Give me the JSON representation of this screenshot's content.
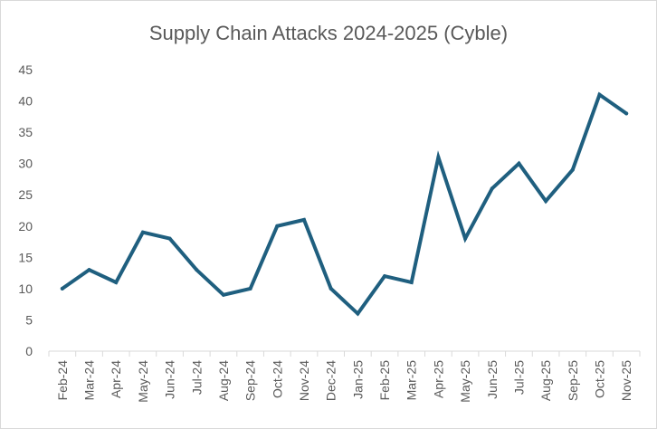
{
  "chart_data": {
    "type": "line",
    "title": "Supply Chain Attacks 2024-2025 (Cyble)",
    "xlabel": "",
    "ylabel": "",
    "categories": [
      "Feb-24",
      "Mar-24",
      "Apr-24",
      "May-24",
      "Jun-24",
      "Jul-24",
      "Aug-24",
      "Sep-24",
      "Oct-24",
      "Nov-24",
      "Dec-24",
      "Jan-25",
      "Feb-25",
      "Mar-25",
      "Apr-25",
      "May-25",
      "Jun-25",
      "Jul-25",
      "Aug-25",
      "Sep-25",
      "Oct-25",
      "Nov-25"
    ],
    "values": [
      10,
      13,
      11,
      19,
      18,
      13,
      9,
      10,
      20,
      21,
      10,
      6,
      12,
      11,
      31,
      18,
      26,
      30,
      24,
      29,
      41,
      38
    ],
    "ylim": [
      0,
      45
    ],
    "yticks": [
      0,
      5,
      10,
      15,
      20,
      25,
      30,
      35,
      40,
      45
    ],
    "grid": false,
    "legend": "none",
    "line_color": "#1f5f7f"
  }
}
